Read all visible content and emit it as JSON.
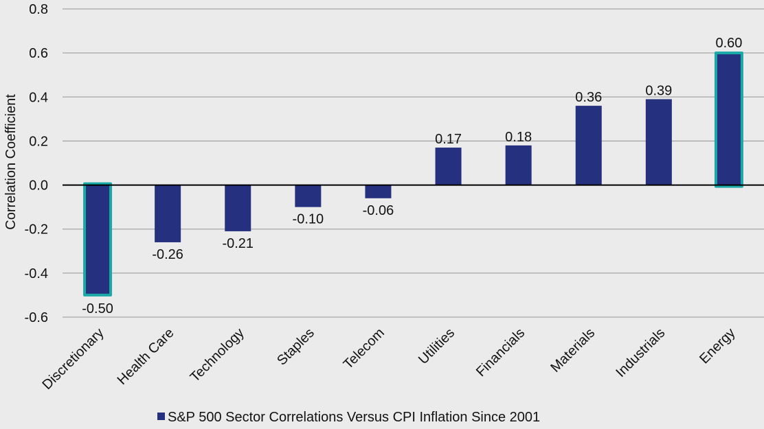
{
  "chart_data": {
    "type": "bar",
    "title": "",
    "xlabel": "",
    "ylabel": "Correlation Coefficient",
    "ylim": [
      -0.6,
      0.8
    ],
    "yticks": [
      "0.8",
      "0.6",
      "0.4",
      "0.2",
      "0.0",
      "-0.2",
      "-0.4",
      "-0.6"
    ],
    "ytick_values": [
      0.8,
      0.6,
      0.4,
      0.2,
      0.0,
      -0.2,
      -0.4,
      -0.6
    ],
    "grid": true,
    "legend_position": "bottom",
    "categories": [
      "Discretionary",
      "Health Care",
      "Technology",
      "Staples",
      "Telecom",
      "Utilities",
      "Financials",
      "Materials",
      "Industrials",
      "Energy"
    ],
    "series": [
      {
        "name": "S&P 500 Sector Correlations Versus CPI Inflation Since 2001",
        "values": [
          -0.5,
          -0.26,
          -0.21,
          -0.1,
          -0.06,
          0.17,
          0.18,
          0.36,
          0.39,
          0.6
        ],
        "labels": [
          "-0.50",
          "-0.26",
          "-0.21",
          "-0.10",
          "-0.06",
          "0.17",
          "0.18",
          "0.36",
          "0.39",
          "0.60"
        ],
        "color": "#25307e"
      }
    ],
    "highlighted": [
      "Discretionary",
      "Energy"
    ],
    "highlight_color": "#1aa9a6",
    "background": "#ebebeb"
  }
}
